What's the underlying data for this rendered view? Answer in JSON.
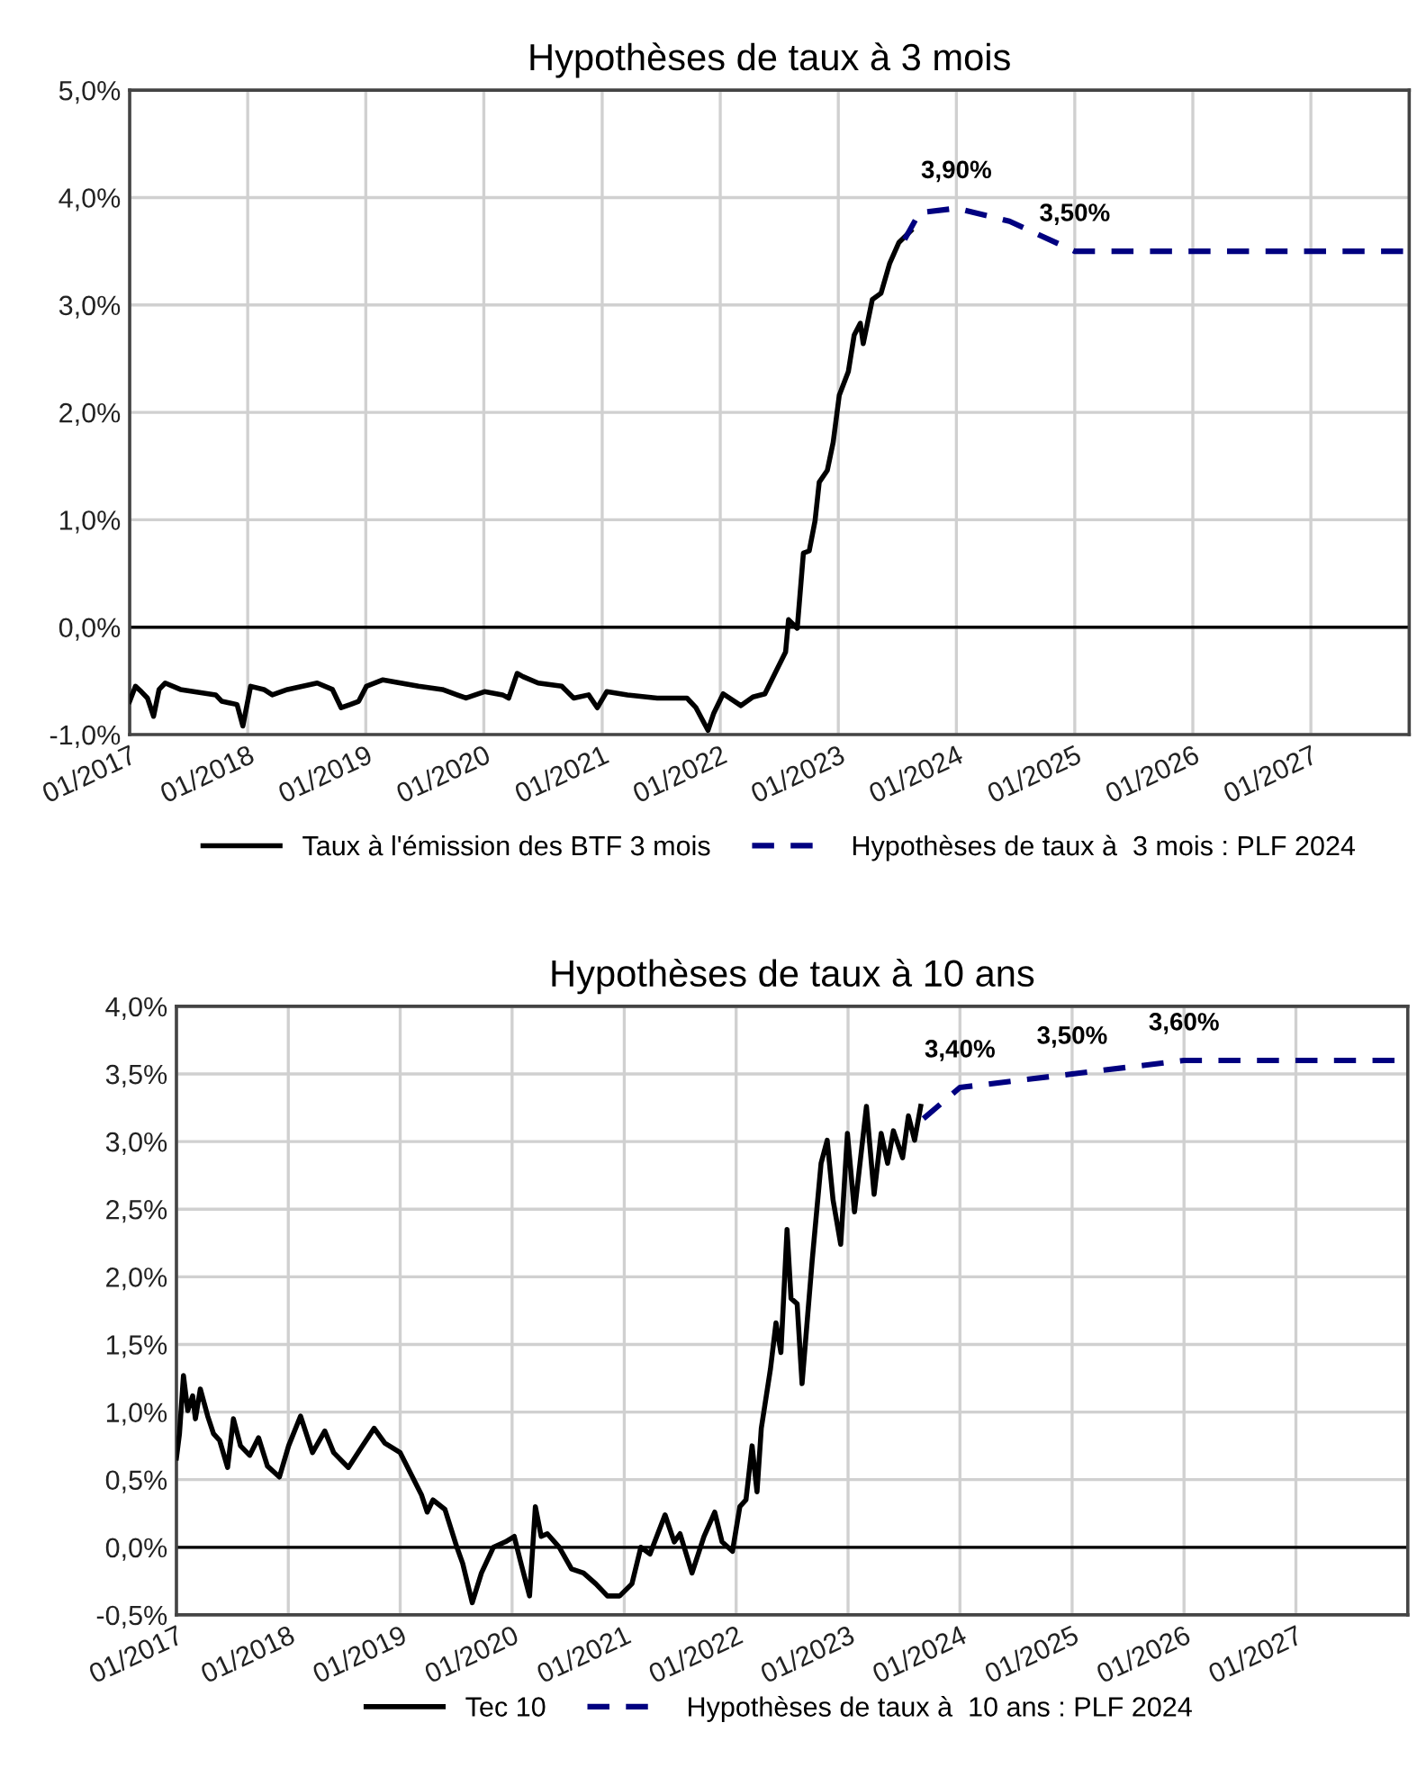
{
  "chart_data": [
    {
      "type": "line",
      "title": "Hypothèses de taux à 3 mois",
      "xlim": [
        "2017-01-01",
        "2027-11-01"
      ],
      "xticks": [
        {
          "value": "2017-01-01",
          "label": "01/2017"
        },
        {
          "value": "2018-01-01",
          "label": "01/2018"
        },
        {
          "value": "2019-01-01",
          "label": "01/2019"
        },
        {
          "value": "2020-01-01",
          "label": "01/2020"
        },
        {
          "value": "2021-01-01",
          "label": "01/2021"
        },
        {
          "value": "2022-01-01",
          "label": "01/2022"
        },
        {
          "value": "2023-01-01",
          "label": "01/2023"
        },
        {
          "value": "2024-01-01",
          "label": "01/2024"
        },
        {
          "value": "2025-01-01",
          "label": "01/2025"
        },
        {
          "value": "2026-01-01",
          "label": "01/2026"
        },
        {
          "value": "2027-01-01",
          "label": "01/2027"
        }
      ],
      "ylim": [
        -1,
        5
      ],
      "yticks": [
        {
          "value": -1,
          "label": "-1,0%"
        },
        {
          "value": 0,
          "label": "0,0%"
        },
        {
          "value": 1,
          "label": "1,0%"
        },
        {
          "value": 2,
          "label": "2,0%"
        },
        {
          "value": 3,
          "label": "3,0%"
        },
        {
          "value": 4,
          "label": "4,0%"
        },
        {
          "value": 5,
          "label": "5,0%"
        }
      ],
      "grid": true,
      "legend": "bottom",
      "marker": "none",
      "ref_lines": [
        {
          "axis": "y",
          "value": 0,
          "color": "#000000"
        }
      ],
      "annotations": [
        {
          "text": "3,90%",
          "x": "2024-01-01",
          "y": 3.9
        },
        {
          "text": "3,50%",
          "x": "2025-01-01",
          "y": 3.5
        }
      ],
      "series": [
        {
          "name": "Taux à l'émission des BTF 3 mois",
          "color": "#000000",
          "line_style": "solid",
          "x": [
            "2017-01-01",
            "2017-01-19",
            "2017-02-06",
            "2017-02-25",
            "2017-03-16",
            "2017-04-02",
            "2017-04-21",
            "2017-06-07",
            "2017-09-24",
            "2017-10-13",
            "2017-11-29",
            "2017-12-17",
            "2018-01-10",
            "2018-02-20",
            "2018-03-18",
            "2018-05-04",
            "2018-08-04",
            "2018-09-20",
            "2018-10-17",
            "2018-11-14",
            "2018-12-10",
            "2019-01-03",
            "2019-02-23",
            "2019-06-13",
            "2019-08-26",
            "2019-11-07",
            "2020-01-03",
            "2020-02-28",
            "2020-03-18",
            "2020-04-13",
            "2020-05-01",
            "2020-06-17",
            "2020-08-29",
            "2020-10-05",
            "2020-11-20",
            "2020-12-17",
            "2021-01-15",
            "2021-03-20",
            "2021-06-20",
            "2021-09-20",
            "2021-10-18",
            "2021-11-24",
            "2021-12-12",
            "2022-01-10",
            "2022-03-06",
            "2022-04-12",
            "2022-05-19",
            "2022-06-24",
            "2022-07-22",
            "2022-07-31",
            "2022-08-27",
            "2022-09-15",
            "2022-10-03",
            "2022-10-21",
            "2022-11-03",
            "2022-11-28",
            "2022-12-16",
            "2023-01-04",
            "2023-02-01",
            "2023-02-19",
            "2023-03-10",
            "2023-03-19",
            "2023-04-16",
            "2023-05-13",
            "2023-06-09",
            "2023-07-07",
            "2023-08-13"
          ],
          "values": [
            -0.69,
            -0.55,
            -0.6,
            -0.66,
            -0.83,
            -0.58,
            -0.52,
            -0.58,
            -0.63,
            -0.69,
            -0.72,
            -0.92,
            -0.55,
            -0.58,
            -0.63,
            -0.58,
            -0.52,
            -0.58,
            -0.75,
            -0.72,
            -0.69,
            -0.55,
            -0.49,
            -0.55,
            -0.58,
            -0.66,
            -0.6,
            -0.63,
            -0.66,
            -0.43,
            -0.46,
            -0.52,
            -0.55,
            -0.66,
            -0.63,
            -0.75,
            -0.6,
            -0.63,
            -0.66,
            -0.66,
            -0.75,
            -0.96,
            -0.8,
            -0.62,
            -0.73,
            -0.65,
            -0.62,
            -0.4,
            -0.23,
            0.07,
            -0.01,
            0.69,
            0.71,
            0.99,
            1.35,
            1.46,
            1.72,
            2.16,
            2.38,
            2.72,
            2.83,
            2.64,
            3.05,
            3.11,
            3.39,
            3.58,
            3.69
          ]
        },
        {
          "name": "Hypothèses de taux à  3 mois : PLF 2024",
          "color": "#000080",
          "line_style": "dashed",
          "x": [
            "2023-07-25",
            "2023-09-09",
            "2024-01-01",
            "2024-06-13",
            "2025-01-01",
            "2027-11-01"
          ],
          "values": [
            3.61,
            3.86,
            3.9,
            3.78,
            3.5,
            3.5
          ]
        }
      ]
    },
    {
      "type": "line",
      "title": "Hypothèses de taux à 10 ans",
      "xlim": [
        "2017-01-01",
        "2028-01-01"
      ],
      "xticks": [
        {
          "value": "2017-01-01",
          "label": "01/2017"
        },
        {
          "value": "2018-01-01",
          "label": "01/2018"
        },
        {
          "value": "2019-01-01",
          "label": "01/2019"
        },
        {
          "value": "2020-01-01",
          "label": "01/2020"
        },
        {
          "value": "2021-01-01",
          "label": "01/2021"
        },
        {
          "value": "2022-01-01",
          "label": "01/2022"
        },
        {
          "value": "2023-01-01",
          "label": "01/2023"
        },
        {
          "value": "2024-01-01",
          "label": "01/2024"
        },
        {
          "value": "2025-01-01",
          "label": "01/2025"
        },
        {
          "value": "2026-01-01",
          "label": "01/2026"
        },
        {
          "value": "2027-01-01",
          "label": "01/2027"
        }
      ],
      "ylim": [
        -0.5,
        4
      ],
      "yticks": [
        {
          "value": -0.5,
          "label": "-0,5%"
        },
        {
          "value": 0,
          "label": "0,0%"
        },
        {
          "value": 0.5,
          "label": "0,5%"
        },
        {
          "value": 1,
          "label": "1,0%"
        },
        {
          "value": 1.5,
          "label": "1,5%"
        },
        {
          "value": 2,
          "label": "2,0%"
        },
        {
          "value": 2.5,
          "label": "2,5%"
        },
        {
          "value": 3,
          "label": "3,0%"
        },
        {
          "value": 3.5,
          "label": "3,5%"
        },
        {
          "value": 4,
          "label": "4,0%"
        }
      ],
      "grid": true,
      "legend": "bottom",
      "marker": "none",
      "ref_lines": [
        {
          "axis": "y",
          "value": 0,
          "color": "#000000"
        }
      ],
      "annotations": [
        {
          "text": "3,40%",
          "x": "2024-01-01",
          "y": 3.4
        },
        {
          "text": "3,50%",
          "x": "2025-01-01",
          "y": 3.5
        },
        {
          "text": "3,60%",
          "x": "2026-01-01",
          "y": 3.6
        }
      ],
      "series": [
        {
          "name": "Tec 10",
          "color": "#000000",
          "line_style": "solid",
          "x": [
            "2017-01-01",
            "2017-01-11",
            "2017-01-24",
            "2017-02-07",
            "2017-02-23",
            "2017-03-04",
            "2017-03-20",
            "2017-04-13",
            "2017-05-02",
            "2017-05-22",
            "2017-06-17",
            "2017-07-06",
            "2017-07-29",
            "2017-08-28",
            "2017-09-26",
            "2017-10-25",
            "2017-12-03",
            "2018-01-02",
            "2018-02-10",
            "2018-03-21",
            "2018-04-30",
            "2018-05-29",
            "2018-07-16",
            "2018-08-25",
            "2018-10-08",
            "2018-11-12",
            "2019-01-01",
            "2019-01-30",
            "2019-03-11",
            "2019-03-30",
            "2019-04-18",
            "2019-05-27",
            "2019-07-05",
            "2019-07-24",
            "2019-08-24",
            "2019-09-23",
            "2019-11-01",
            "2019-12-10",
            "2020-01-08",
            "2020-01-28",
            "2020-02-27",
            "2020-03-17",
            "2020-04-05",
            "2020-04-25",
            "2020-06-03",
            "2020-07-13",
            "2020-08-21",
            "2020-09-30",
            "2020-11-07",
            "2020-12-17",
            "2021-01-26",
            "2021-02-24",
            "2021-03-26",
            "2021-05-14",
            "2021-06-13",
            "2021-07-02",
            "2021-08-10",
            "2021-09-18",
            "2021-10-23",
            "2021-11-16",
            "2021-12-20",
            "2022-01-13",
            "2022-02-02",
            "2022-02-22",
            "2022-03-10",
            "2022-03-24",
            "2022-04-23",
            "2022-05-11",
            "2022-05-27",
            "2022-06-16",
            "2022-06-29",
            "2022-07-19",
            "2022-08-04",
            "2022-09-06",
            "2022-10-05",
            "2022-10-25",
            "2022-11-13",
            "2022-12-08",
            "2022-12-30",
            "2023-01-22",
            "2023-03-02",
            "2023-03-27",
            "2023-04-19",
            "2023-05-10",
            "2023-05-29",
            "2023-06-28",
            "2023-07-17",
            "2023-08-06",
            "2023-08-26"
          ],
          "values": [
            0.66,
            0.84,
            1.27,
            1.01,
            1.12,
            0.95,
            1.17,
            0.97,
            0.84,
            0.79,
            0.59,
            0.95,
            0.75,
            0.68,
            0.81,
            0.6,
            0.52,
            0.75,
            0.97,
            0.7,
            0.86,
            0.7,
            0.59,
            0.73,
            0.88,
            0.77,
            0.7,
            0.57,
            0.39,
            0.26,
            0.35,
            0.28,
            0.0,
            -0.12,
            -0.41,
            -0.19,
            0.0,
            0.04,
            0.08,
            -0.1,
            -0.36,
            0.3,
            0.08,
            0.1,
            0.0,
            -0.16,
            -0.19,
            -0.27,
            -0.36,
            -0.36,
            -0.27,
            0.0,
            -0.05,
            0.24,
            0.04,
            0.1,
            -0.19,
            0.08,
            0.26,
            0.04,
            -0.03,
            0.3,
            0.35,
            0.75,
            0.41,
            0.88,
            1.32,
            1.66,
            1.44,
            2.35,
            1.84,
            1.8,
            1.21,
            2.12,
            2.84,
            3.01,
            2.57,
            2.24,
            3.06,
            2.48,
            3.26,
            2.61,
            3.06,
            2.84,
            3.08,
            2.88,
            3.19,
            3.01,
            3.26
          ]
        },
        {
          "name": "Hypothèses de taux à  10 ans : PLF 2024",
          "color": "#000080",
          "line_style": "dashed",
          "x": [
            "2023-09-04",
            "2024-01-01",
            "2025-01-01",
            "2026-01-01",
            "2027-11-25"
          ],
          "values": [
            3.17,
            3.4,
            3.5,
            3.6,
            3.6
          ]
        }
      ]
    }
  ]
}
